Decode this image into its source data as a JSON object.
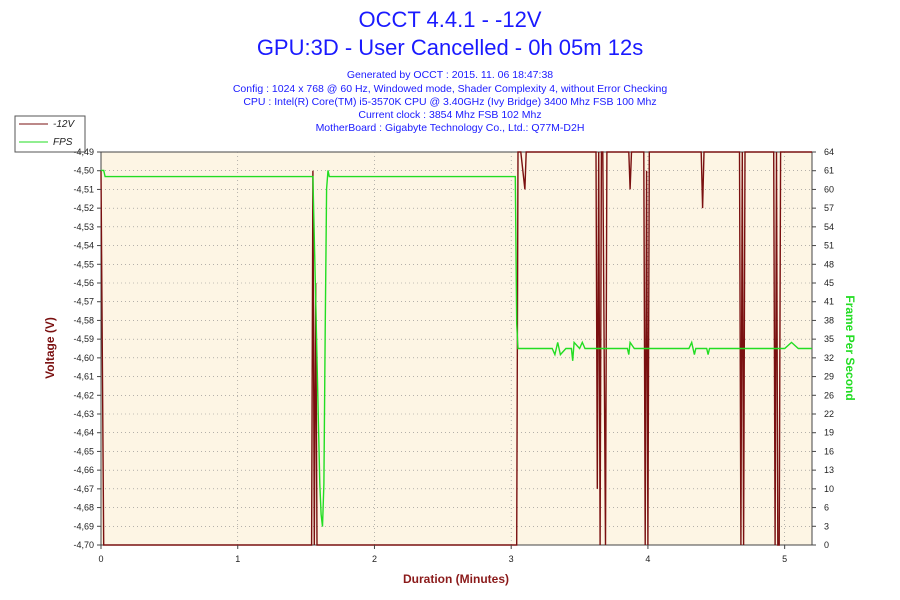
{
  "title": "OCCT 4.4.1 - -12V",
  "subtitle": "GPU:3D - User Cancelled - 0h 05m 12s",
  "info_lines": [
    "Generated by OCCT : 2015. 11. 06 18:47:38",
    "Config : 1024 x 768 @ 60 Hz, Windowed mode, Shader Complexity 4, without Error Checking",
    "CPU : Intel(R) Core(TM) i5-3570K CPU @ 3.40GHz (Ivy Bridge) 3400 Mhz FSB 100 Mhz",
    "Current clock : 3854 Mhz FSB 102 Mhz",
    "MotherBoard : Gigabyte Technology Co., Ltd.: Q77M-D2H"
  ],
  "colors": {
    "voltage": "#7a1010",
    "fps": "#22dd22",
    "title": "#1a1aff",
    "plot_bg": "#fdf5e4",
    "xlabel": "#8b1a1a"
  },
  "chart_data": {
    "type": "line",
    "xlabel": "Duration (Minutes)",
    "ylabel_left": "Voltage (V)",
    "ylabel_right": "Frame Per Second",
    "xlim": [
      0,
      5.2
    ],
    "ylim_left": [
      -4.7,
      -4.49
    ],
    "ylim_right": [
      0,
      64
    ],
    "x_ticks": [
      "0",
      "1",
      "2",
      "3",
      "4",
      "5"
    ],
    "y_left_ticks": [
      "-4,49",
      "-4,50",
      "-4,51",
      "-4,52",
      "-4,53",
      "-4,54",
      "-4,55",
      "-4,56",
      "-4,57",
      "-4,58",
      "-4,59",
      "-4,60",
      "-4,61",
      "-4,62",
      "-4,63",
      "-4,64",
      "-4,65",
      "-4,66",
      "-4,67",
      "-4,68",
      "-4,69",
      "-4,70"
    ],
    "y_right_ticks": [
      "64",
      "61",
      "60",
      "57",
      "54",
      "51",
      "48",
      "45",
      "41",
      "38",
      "35",
      "32",
      "29",
      "26",
      "22",
      "19",
      "16",
      "13",
      "10",
      "6",
      "3",
      "0"
    ],
    "grid": true,
    "legend": [
      "-12V",
      "FPS"
    ],
    "legend_position": "top-left",
    "series": [
      {
        "name": "-12V",
        "axis": "left",
        "x": [
          0,
          0.02,
          0.03,
          0.04,
          1.54,
          1.55,
          1.56,
          1.57,
          1.58,
          1.59,
          1.6,
          3.04,
          3.05,
          3.06,
          3.07,
          3.1,
          3.11,
          3.12,
          3.62,
          3.63,
          3.64,
          3.65,
          3.66,
          3.67,
          3.69,
          3.7,
          3.71,
          3.86,
          3.87,
          3.88,
          3.97,
          3.98,
          3.99,
          4.0,
          4.01,
          4.02,
          4.39,
          4.4,
          4.41,
          4.67,
          4.68,
          4.69,
          4.7,
          4.71,
          4.92,
          4.93,
          4.94,
          4.95,
          4.96,
          4.97,
          5.2
        ],
        "values": [
          -4.5,
          -4.7,
          -4.7,
          -4.7,
          -4.7,
          -4.5,
          -4.7,
          -4.56,
          -4.7,
          -4.7,
          -4.7,
          -4.7,
          -4.49,
          -4.49,
          -4.49,
          -4.51,
          -4.49,
          -4.49,
          -4.49,
          -4.67,
          -4.49,
          -4.7,
          -4.49,
          -4.49,
          -4.7,
          -4.49,
          -4.49,
          -4.49,
          -4.51,
          -4.49,
          -4.49,
          -4.7,
          -4.5,
          -4.7,
          -4.49,
          -4.49,
          -4.49,
          -4.52,
          -4.49,
          -4.49,
          -4.7,
          -4.49,
          -4.7,
          -4.49,
          -4.49,
          -4.7,
          -4.49,
          -4.7,
          -4.7,
          -4.49,
          -4.49
        ]
      },
      {
        "name": "FPS",
        "axis": "right",
        "x": [
          0,
          0.02,
          0.03,
          0.2,
          0.4,
          0.6,
          0.8,
          1.0,
          1.2,
          1.4,
          1.52,
          1.55,
          1.57,
          1.59,
          1.6,
          1.61,
          1.62,
          1.63,
          1.64,
          1.65,
          1.66,
          1.67,
          1.7,
          1.8,
          2.0,
          2.2,
          2.4,
          2.6,
          2.8,
          3.0,
          3.03,
          3.04,
          3.05,
          3.06,
          3.1,
          3.2,
          3.3,
          3.32,
          3.34,
          3.36,
          3.4,
          3.44,
          3.45,
          3.46,
          3.5,
          3.52,
          3.54,
          3.6,
          3.7,
          3.8,
          3.85,
          3.86,
          3.87,
          3.9,
          4.0,
          4.2,
          4.3,
          4.32,
          4.34,
          4.35,
          4.36,
          4.4,
          4.43,
          4.44,
          4.45,
          4.5,
          4.7,
          4.9,
          5.0,
          5.05,
          5.1,
          5.2
        ],
        "values": [
          61,
          61,
          60,
          60,
          60,
          60,
          60,
          60,
          60,
          60,
          60,
          60,
          40,
          20,
          10,
          5,
          3,
          10,
          35,
          58,
          61,
          60,
          60,
          60,
          60,
          60,
          60,
          60,
          60,
          60,
          60,
          36,
          32,
          32,
          32,
          32,
          32,
          31,
          33,
          31,
          32,
          32,
          30,
          33,
          32,
          33,
          32,
          32,
          32,
          32,
          32,
          31,
          33,
          32,
          32,
          32,
          32,
          33,
          31,
          32,
          32,
          32,
          32,
          31,
          32,
          32,
          32,
          32,
          32,
          33,
          32,
          32
        ]
      }
    ]
  }
}
